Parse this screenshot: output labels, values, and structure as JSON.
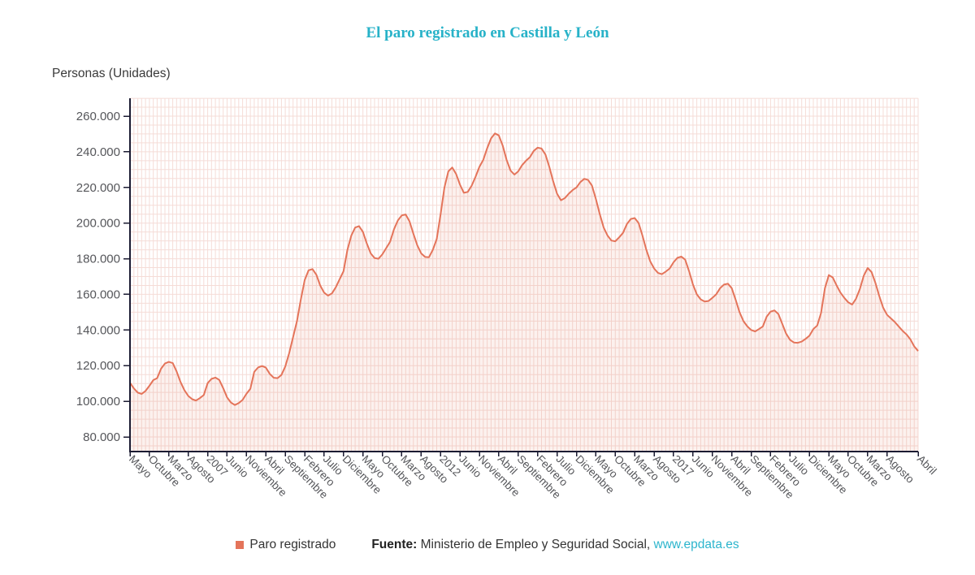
{
  "title": "El paro registrado en Castilla y León",
  "chart_data": {
    "type": "area",
    "series_name": "Paro registrado",
    "y_axis_title": "Personas (Unidades)",
    "frequency": "monthly",
    "start_month": "2005-05",
    "end_month": "2022-04",
    "ylim": [
      72000,
      272000
    ],
    "grid": true,
    "legend_position": "bottom",
    "y_ticks": [
      80000,
      100000,
      120000,
      140000,
      160000,
      180000,
      200000,
      220000,
      240000,
      260000
    ],
    "y_tick_labels": [
      "80.000",
      "100.000",
      "120.000",
      "140.000",
      "160.000",
      "180.000",
      "200.000",
      "220.000",
      "240.000",
      "260.000"
    ],
    "x_tick_labels": [
      {
        "i": 0,
        "label": "Mayo"
      },
      {
        "i": 5,
        "label": "Octubre"
      },
      {
        "i": 10,
        "label": "Marzo"
      },
      {
        "i": 15,
        "label": "Agosto"
      },
      {
        "i": 20,
        "label": "2007"
      },
      {
        "i": 25,
        "label": "Junio"
      },
      {
        "i": 30,
        "label": "Noviembre"
      },
      {
        "i": 35,
        "label": "Abril"
      },
      {
        "i": 40,
        "label": "Septiembre"
      },
      {
        "i": 45,
        "label": "Febrero"
      },
      {
        "i": 50,
        "label": "Julio"
      },
      {
        "i": 55,
        "label": "Diciembre"
      },
      {
        "i": 60,
        "label": "Mayo"
      },
      {
        "i": 65,
        "label": "Octubre"
      },
      {
        "i": 70,
        "label": "Marzo"
      },
      {
        "i": 75,
        "label": "Agosto"
      },
      {
        "i": 80,
        "label": "2012"
      },
      {
        "i": 85,
        "label": "Junio"
      },
      {
        "i": 90,
        "label": "Noviembre"
      },
      {
        "i": 95,
        "label": "Abril"
      },
      {
        "i": 100,
        "label": "Septiembre"
      },
      {
        "i": 105,
        "label": "Febrero"
      },
      {
        "i": 110,
        "label": "Julio"
      },
      {
        "i": 115,
        "label": "Diciembre"
      },
      {
        "i": 120,
        "label": "Mayo"
      },
      {
        "i": 125,
        "label": "Octubre"
      },
      {
        "i": 130,
        "label": "Marzo"
      },
      {
        "i": 135,
        "label": "Agosto"
      },
      {
        "i": 140,
        "label": "2017"
      },
      {
        "i": 145,
        "label": "Junio"
      },
      {
        "i": 150,
        "label": "Noviembre"
      },
      {
        "i": 155,
        "label": "Abril"
      },
      {
        "i": 160,
        "label": "Septiembre"
      },
      {
        "i": 165,
        "label": "Febrero"
      },
      {
        "i": 170,
        "label": "Julio"
      },
      {
        "i": 175,
        "label": "Diciembre"
      },
      {
        "i": 180,
        "label": "Mayo"
      },
      {
        "i": 185,
        "label": "Octubre"
      },
      {
        "i": 190,
        "label": "Marzo"
      },
      {
        "i": 195,
        "label": "Agosto"
      },
      {
        "i": 203,
        "label": "Abril"
      }
    ],
    "values": [
      110400,
      107200,
      104900,
      104100,
      105800,
      108700,
      111900,
      113000,
      118300,
      121200,
      122100,
      121400,
      116800,
      110900,
      106300,
      103000,
      101200,
      100400,
      101800,
      103500,
      110200,
      112600,
      113300,
      112000,
      107400,
      102200,
      99300,
      97900,
      99000,
      100800,
      104200,
      107000,
      116500,
      119000,
      119800,
      118900,
      115400,
      113200,
      113000,
      114800,
      119500,
      127000,
      136000,
      145000,
      157000,
      168000,
      173500,
      174200,
      171000,
      165000,
      161000,
      159300,
      160500,
      164000,
      168500,
      173000,
      185000,
      193000,
      197500,
      198300,
      195000,
      188500,
      183000,
      180400,
      180000,
      182500,
      186000,
      189500,
      196500,
      201500,
      204300,
      204800,
      201000,
      194000,
      187500,
      183000,
      181000,
      180800,
      185000,
      191000,
      205000,
      220000,
      229000,
      231200,
      227500,
      221500,
      217000,
      217500,
      221000,
      226000,
      231500,
      235500,
      242000,
      247500,
      250300,
      249200,
      243500,
      235500,
      229500,
      227200,
      229000,
      232500,
      235000,
      237000,
      240500,
      242300,
      241800,
      238500,
      231500,
      223500,
      216500,
      212800,
      214000,
      216500,
      218500,
      220000,
      223000,
      224800,
      224200,
      221000,
      213500,
      205000,
      197500,
      193000,
      190200,
      189800,
      192000,
      194500,
      199500,
      202300,
      202800,
      200000,
      193000,
      185000,
      178500,
      174500,
      172000,
      171300,
      172800,
      174500,
      178000,
      180500,
      181200,
      179500,
      173000,
      165500,
      160000,
      157200,
      156000,
      156300,
      158000,
      160000,
      163500,
      165500,
      166000,
      163500,
      157000,
      150000,
      145000,
      142000,
      140000,
      139200,
      140500,
      142000,
      147500,
      150300,
      151000,
      149000,
      143500,
      138000,
      134500,
      133000,
      132800,
      133500,
      135000,
      136800,
      140500,
      142500,
      149500,
      163500,
      170800,
      169500,
      165000,
      161000,
      158000,
      155500,
      154300,
      157500,
      163000,
      170500,
      174800,
      172500,
      166500,
      159000,
      152500,
      148500,
      146500,
      144500,
      142000,
      139500,
      137500,
      134800,
      130800,
      128200
    ],
    "colors": {
      "line": "#e4745a",
      "fill_opacity": 0.1,
      "grid": "#f5dcd7",
      "axis": "#1b1b32",
      "tick_text": "#55565a",
      "title": "#27b2c8",
      "link": "#2cb5cd"
    }
  },
  "legend": {
    "label": "Paro registrado",
    "swatch_color": "#e4745a"
  },
  "source": {
    "prefix": "Fuente:",
    "text": " Ministerio de Empleo y Seguridad Social, ",
    "link": "www.epdata.es"
  }
}
